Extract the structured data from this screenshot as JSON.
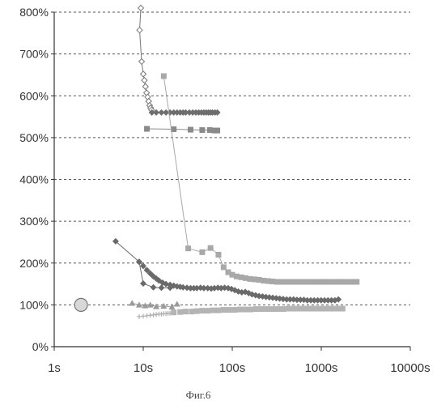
{
  "caption": "Фиг.6",
  "chart_data": {
    "type": "scatter",
    "x_scale": "log",
    "xlim": [
      1,
      10000
    ],
    "ylim": [
      0,
      800
    ],
    "grid": "horizontal-dashed",
    "x_ticks": [
      {
        "value": 1,
        "label": "1s"
      },
      {
        "value": 10,
        "label": "10s"
      },
      {
        "value": 100,
        "label": "100s"
      },
      {
        "value": 1000,
        "label": "1000s"
      },
      {
        "value": 10000,
        "label": "10000s"
      }
    ],
    "y_ticks": [
      {
        "value": 0,
        "label": "0%"
      },
      {
        "value": 100,
        "label": "100%"
      },
      {
        "value": 200,
        "label": "200%"
      },
      {
        "value": 300,
        "label": "300%"
      },
      {
        "value": 400,
        "label": "400%"
      },
      {
        "value": 500,
        "label": "500%"
      },
      {
        "value": 600,
        "label": "600%"
      },
      {
        "value": 700,
        "label": "700%"
      },
      {
        "value": 800,
        "label": "800%"
      }
    ],
    "colors": {
      "dark": "#6e6e6e",
      "medium": "#9a9a9a",
      "light": "#b4b4b4",
      "circle_fill": "#d8d8d8",
      "outline": "#777777",
      "grid": "#555555",
      "axis": "#333333"
    },
    "series": [
      {
        "marker": "diamond-open",
        "color": "#777777",
        "line": true,
        "x": [
          9.4,
          9.1,
          9.6,
          10.0,
          10.3,
          10.6,
          10.9,
          11.2,
          11.5,
          11.8,
          12.1,
          12.4
        ],
        "y": [
          810,
          757,
          682,
          652,
          637,
          622,
          607,
          597,
          587,
          577,
          571,
          566
        ]
      },
      {
        "marker": "diamond",
        "color": "#6e6e6e",
        "line": false,
        "x": [
          12.5,
          14,
          16,
          18,
          20,
          22,
          24,
          26,
          28,
          30,
          33,
          36,
          39,
          42,
          45,
          48,
          51,
          54,
          57,
          60,
          64,
          68
        ],
        "y": [
          560,
          560,
          560,
          560,
          560,
          560,
          560,
          560,
          560,
          560,
          560,
          560,
          560,
          560,
          560,
          560,
          560,
          560,
          560,
          560,
          560,
          560
        ]
      },
      {
        "marker": "square",
        "color": "#8a8a8a",
        "line": true,
        "x": [
          11,
          22,
          34,
          46,
          56,
          63,
          68
        ],
        "y": [
          521,
          520,
          519,
          518,
          518,
          517,
          517
        ]
      },
      {
        "marker": "square",
        "color": "#a8a8a8",
        "line": true,
        "x": [
          17,
          32,
          46,
          57,
          70,
          80,
          90,
          100,
          112,
          126,
          141,
          158,
          178,
          200,
          225,
          252,
          283,
          318,
          357,
          401,
          450,
          505,
          567,
          636,
          714,
          801,
          899,
          1009,
          1132,
          1270,
          1425,
          1600,
          1800,
          2000,
          2250,
          2500
        ],
        "y": [
          647,
          235,
          226,
          236,
          220,
          190,
          178,
          172,
          168,
          166,
          164,
          162,
          161,
          160,
          158,
          157,
          156,
          155,
          155,
          155,
          155,
          155,
          155,
          155,
          155,
          155,
          155,
          155,
          155,
          155,
          155,
          155,
          155,
          155,
          155,
          155
        ]
      },
      {
        "marker": "diamond",
        "color": "#6a6a6a",
        "line": true,
        "x": [
          4.9,
          9,
          10,
          11,
          12,
          13,
          14,
          15,
          16.5,
          18,
          20,
          22,
          24,
          26,
          28,
          31,
          34,
          37,
          40,
          44,
          48,
          53,
          58,
          63,
          69,
          75,
          82,
          90,
          98,
          107,
          117,
          128,
          140,
          153,
          167,
          183,
          200,
          219,
          239,
          261,
          285,
          312,
          341,
          373,
          408,
          446,
          488,
          533,
          583,
          637,
          697,
          762,
          833,
          911,
          996,
          1089,
          1191,
          1302,
          1424,
          1557
        ],
        "y": [
          252,
          203,
          193,
          183,
          175,
          168,
          163,
          158,
          153,
          150,
          148,
          146,
          144,
          143,
          142,
          141,
          140,
          140,
          140,
          141,
          140,
          140,
          139,
          140,
          141,
          140,
          141,
          140,
          138,
          135,
          132,
          130,
          131,
          128,
          125,
          123,
          121,
          120,
          119,
          118,
          117,
          116,
          115,
          114,
          113,
          113,
          113,
          112,
          112,
          112,
          111,
          111,
          111,
          111,
          111,
          111,
          111,
          111,
          111,
          113
        ]
      },
      {
        "marker": "diamond",
        "color": "#6a6a6a",
        "line": true,
        "x": [
          9,
          10,
          13,
          16,
          20
        ],
        "y": [
          203,
          151,
          142,
          141,
          141
        ]
      },
      {
        "marker": "triangle",
        "color": "#9a9a9a",
        "line": true,
        "x": [
          7.5,
          9,
          10.5,
          12,
          14,
          17,
          21,
          24
        ],
        "y": [
          104,
          100,
          98,
          100,
          96,
          97,
          95,
          102
        ]
      },
      {
        "marker": "plus",
        "color": "#b0b0b0",
        "line": false,
        "x": [
          9,
          10,
          11,
          12,
          13,
          14,
          15,
          16,
          17,
          18,
          19,
          20,
          22
        ],
        "y": [
          72,
          73,
          74,
          75,
          76,
          77,
          78,
          78,
          79,
          79,
          80,
          80,
          81
        ]
      },
      {
        "marker": "square",
        "color": "#b4b4b4",
        "line": false,
        "x": [
          22,
          26,
          30,
          35,
          40,
          46,
          53,
          61,
          70,
          80,
          92,
          106,
          122,
          140,
          161,
          185,
          213,
          245,
          282,
          324,
          373,
          429,
          493,
          567,
          652,
          750,
          862,
          991,
          1140,
          1311,
          1508,
          1734
        ],
        "y": [
          82,
          83,
          84,
          84,
          85,
          86,
          86,
          87,
          87,
          88,
          88,
          88,
          89,
          89,
          89,
          90,
          90,
          90,
          90,
          90,
          90,
          91,
          91,
          91,
          91,
          91,
          91,
          91,
          91,
          91,
          91,
          91
        ]
      },
      {
        "marker": "circle-big",
        "color": "#d8d8d8",
        "line": false,
        "x": [
          2.0
        ],
        "y": [
          100
        ]
      }
    ]
  }
}
